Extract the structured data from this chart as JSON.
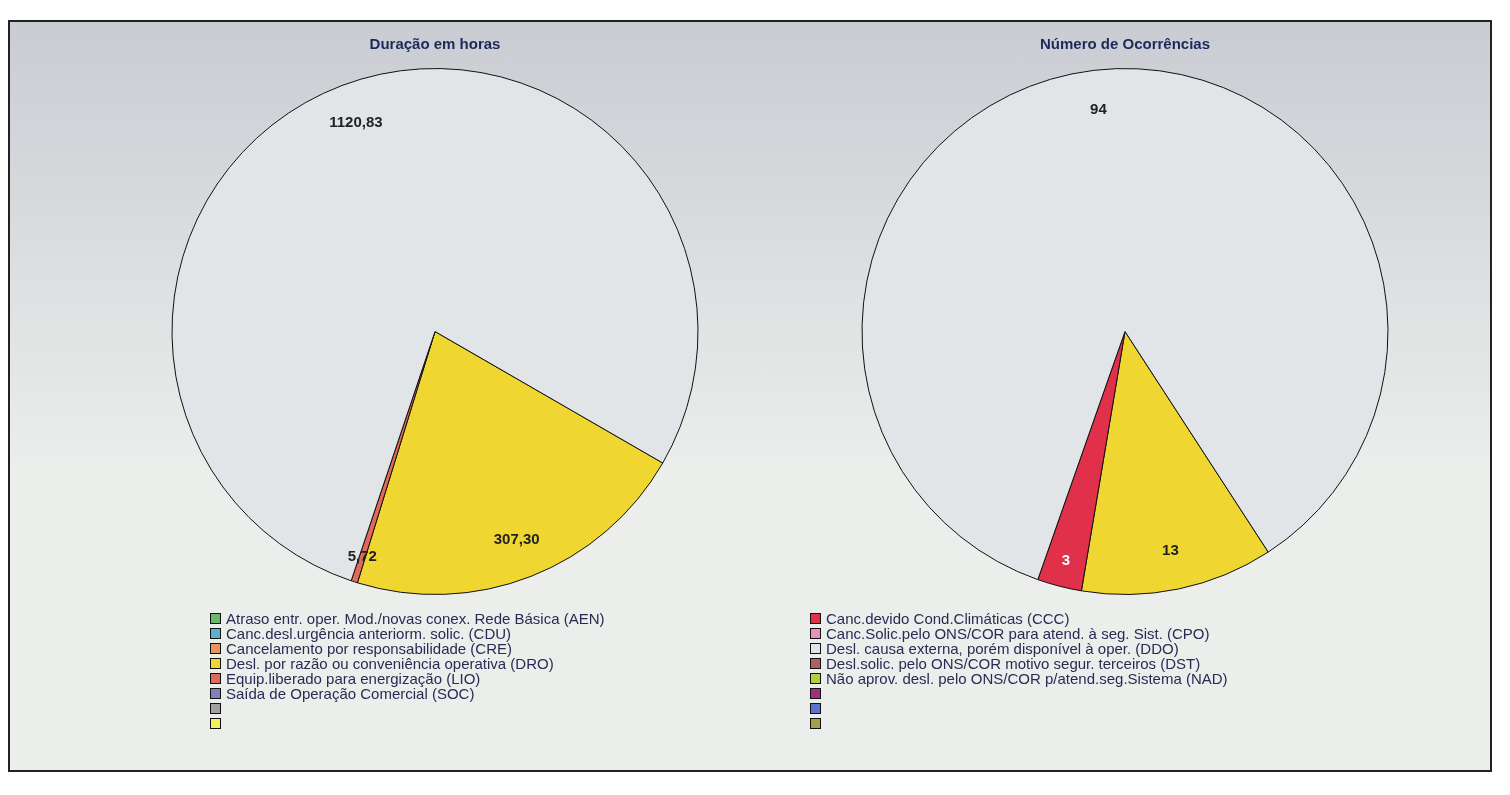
{
  "chart_data": [
    {
      "type": "pie",
      "title": "Duração em horas",
      "legend": "bottom",
      "categories": [
        "Atraso entr. oper. Mod./novas conex. Rede Básica (AEN)",
        "Canc.desl.urgência anteriorm. solic. (CDU)",
        "Cancelamento por responsabilidade (CRE)",
        "Desl. por razão ou conveniência operativa (DRO)",
        "Equip.liberado para energização (LIO)",
        "Saída de Operação Comercial (SOC)",
        null,
        null,
        "Canc.devido Cond.Climáticas (CCC)",
        "Canc.Solic.pelo ONS/COR para atend. à seg. Sist. (CPO)",
        "Desl. causa externa, porém disponível à oper. (DDO)",
        "Desl.solic. pelo ONS/COR motivo segur. terceiros (DST)",
        "Não aprov. desl. pelo ONS/COR p/atend.seg.Sistema (NAD)",
        null,
        null,
        null
      ],
      "values": [
        0,
        0,
        0,
        307.3,
        5.72,
        0,
        0,
        0,
        0,
        0,
        1120.83,
        0,
        0,
        0,
        0,
        0
      ],
      "value_labels": [
        null,
        null,
        null,
        "307,30",
        "5,72",
        null,
        null,
        null,
        null,
        null,
        "1120,83",
        null,
        null,
        null,
        null,
        null
      ],
      "colors": [
        "#6ab86a",
        "#5ab0d0",
        "#e8945a",
        "#f0d630",
        "#e06a5a",
        "#8080c0",
        "#a0a0a0",
        "#f0f060",
        "#e0304a",
        "#e890c0",
        "#e2e5e8",
        "#b06060",
        "#b0d040",
        "#a03080",
        "#6070d0",
        "#a0a050"
      ]
    },
    {
      "type": "pie",
      "title": "Número de Ocorrências",
      "categories": [
        null,
        null,
        null,
        null,
        null,
        null,
        null,
        null,
        null,
        null,
        null,
        null,
        null,
        null,
        null,
        null
      ],
      "values": [
        0,
        0,
        0,
        13,
        0,
        0,
        0,
        0,
        3,
        0,
        94,
        0,
        0,
        0,
        0,
        0
      ],
      "data_labels": true,
      "colors": [
        "#6ab86a",
        "#5ab0d0",
        "#e8945a",
        "#f0d630",
        "#e06a5a",
        "#8080c0",
        "#a0a0a0",
        "#f0f060",
        "#e0304a",
        "#e890c0",
        "#e2e5e8",
        "#b06060",
        "#b0d040",
        "#a03080",
        "#6070d0",
        "#a0a050"
      ]
    }
  ]
}
